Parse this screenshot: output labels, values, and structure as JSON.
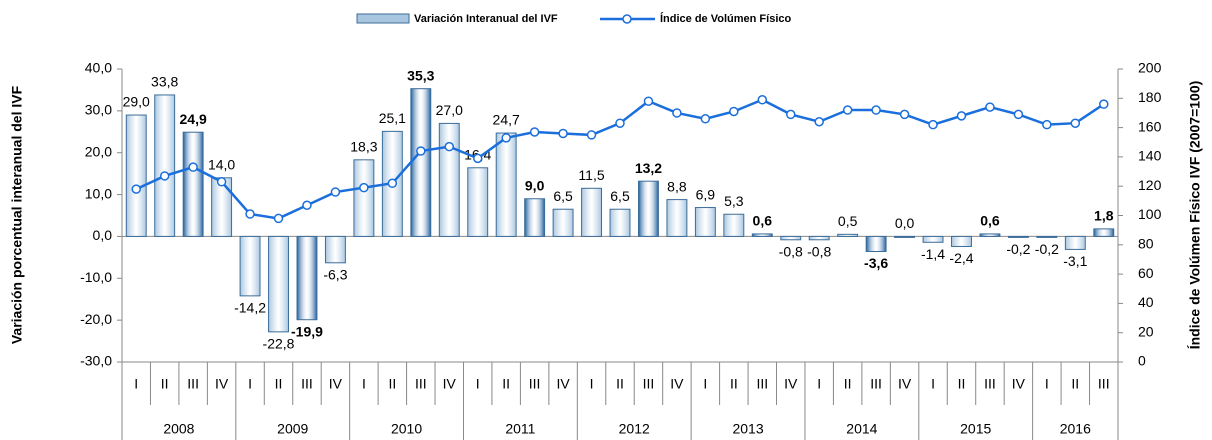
{
  "chart_data": {
    "type": "bar",
    "legend": "top",
    "y_label": "Variación porcentual interanual del IVF",
    "y2_label": "Índice de Volúmen Físico IVF (2007=100)",
    "categories": [
      "I",
      "II",
      "III",
      "IV",
      "I",
      "II",
      "III",
      "IV",
      "I",
      "II",
      "III",
      "IV",
      "I",
      "II",
      "III",
      "IV",
      "I",
      "II",
      "III",
      "IV",
      "I",
      "II",
      "III",
      "IV",
      "I",
      "II",
      "III",
      "IV",
      "I",
      "II",
      "III",
      "IV",
      "I",
      "II",
      "III"
    ],
    "years": [
      "2008",
      "2009",
      "2010",
      "2011",
      "2012",
      "2013",
      "2014",
      "2015",
      "2016"
    ],
    "highlight_category": "III",
    "ylim": [
      -30,
      40
    ],
    "yticks": [
      {
        "value": -30,
        "label": "-30,0"
      },
      {
        "value": -20,
        "label": "-20,0"
      },
      {
        "value": -10,
        "label": "-10,0"
      },
      {
        "value": 0,
        "label": "0,0"
      },
      {
        "value": 10,
        "label": "10,0"
      },
      {
        "value": 20,
        "label": "20,0"
      },
      {
        "value": 30,
        "label": "30,0"
      },
      {
        "value": 40,
        "label": "40,0"
      }
    ],
    "y2lim": [
      0,
      200
    ],
    "y2ticks": [
      0,
      20,
      40,
      60,
      80,
      100,
      120,
      140,
      160,
      180,
      200
    ],
    "series": [
      {
        "name": "Variación Interanual del IVF",
        "type": "bar",
        "color": "#a9c6e0",
        "highlight_color": "#1f5e9e",
        "values": [
          29.0,
          33.8,
          24.9,
          14.0,
          -14.2,
          -22.8,
          -19.9,
          -6.3,
          18.3,
          25.1,
          35.3,
          27.0,
          16.4,
          24.7,
          9.0,
          6.5,
          11.5,
          6.5,
          13.2,
          8.8,
          6.9,
          5.3,
          0.6,
          -0.8,
          -0.8,
          0.5,
          -3.6,
          0.0,
          -1.4,
          -2.4,
          0.6,
          -0.2,
          -0.2,
          -3.1,
          1.8
        ],
        "value_labels": [
          "29,0",
          "33,8",
          "24,9",
          "14,0",
          "-14,2",
          "-22,8",
          "-19,9",
          "-6,3",
          "18,3",
          "25,1",
          "35,3",
          "27,0",
          "16,4",
          "24,7",
          "9,0",
          "6,5",
          "11,5",
          "6,5",
          "13,2",
          "8,8",
          "6,9",
          "5,3",
          "0,6",
          "-0,8",
          "-0,8",
          "0,5",
          "-3,6",
          "0,0",
          "-1,4",
          "-2,4",
          "0,6",
          "-0,2",
          "-0,2",
          "-3,1",
          "1,8"
        ]
      },
      {
        "name": "Índice de Volúmen Físico",
        "type": "line",
        "axis": "y2",
        "color": "#1a6fdc",
        "values": [
          118,
          127,
          133,
          123,
          101,
          98,
          107,
          116,
          119,
          122,
          144,
          147,
          139,
          153,
          157,
          156,
          155,
          163,
          178,
          170,
          166,
          171,
          179,
          169,
          164,
          172,
          172,
          169,
          162,
          168,
          174,
          169,
          162,
          163,
          176
        ]
      }
    ]
  }
}
